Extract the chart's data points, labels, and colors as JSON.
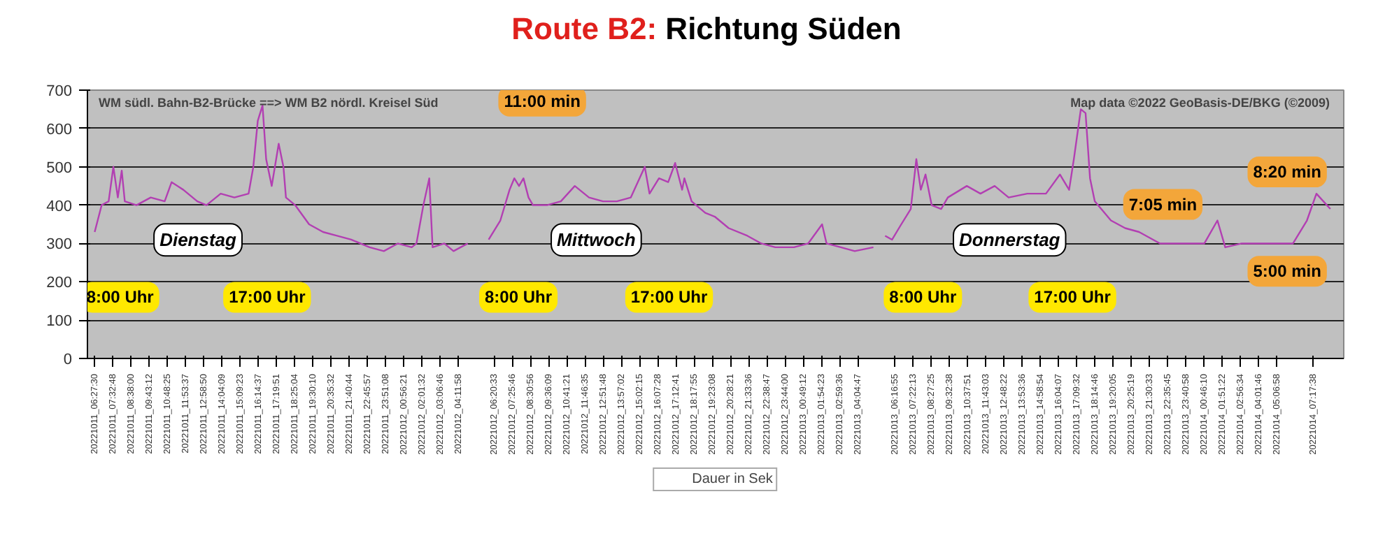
{
  "chart_data": {
    "type": "line",
    "title": "Route B2: Richtung Süden",
    "series": [
      {
        "name": "Dauer in Sek",
        "color": "#b23fb2",
        "x": [
          "2022-10-11T06:26",
          "2022-10-11T06:51",
          "2022-10-11T07:16",
          "2022-10-11T07:33",
          "2022-10-11T07:49",
          "2022-10-11T08:03",
          "2022-10-11T08:14",
          "2022-10-11T08:56",
          "2022-10-11T09:47",
          "2022-10-11T10:37",
          "2022-10-11T11:02",
          "2022-10-11T11:44",
          "2022-10-11T12:34",
          "2022-10-11T13:07",
          "2022-10-11T13:58",
          "2022-10-11T14:47",
          "2022-10-11T15:38",
          "2022-10-11T15:55",
          "2022-10-11T16:11",
          "2022-10-11T16:28",
          "2022-10-11T16:41",
          "2022-10-11T17:01",
          "2022-10-11T17:26",
          "2022-10-11T17:43",
          "2022-10-11T17:52",
          "2022-10-11T18:25",
          "2022-10-11T19:15",
          "2022-10-11T20:05",
          "2022-10-11T20:55",
          "2022-10-11T21:46",
          "2022-10-11T22:52",
          "2022-10-11T23:43",
          "2022-10-12T00:33",
          "2022-10-12T01:23",
          "2022-10-12T01:40",
          "2022-10-12T02:05",
          "2022-10-12T02:26",
          "2022-10-12T02:38",
          "2022-10-12T03:20",
          "2022-10-12T03:53",
          "2022-10-12T04:44",
          "2022-10-12T05:18",
          "2022-10-12T05:59",
          "2022-10-12T06:41",
          "2022-10-12T07:14",
          "2022-10-12T07:31",
          "2022-10-12T07:48",
          "2022-10-12T08:04",
          "2022-10-12T08:22",
          "2022-10-12T08:38",
          "2022-10-12T09:28",
          "2022-10-12T10:18",
          "2022-10-12T11:08",
          "2022-10-12T11:59",
          "2022-10-12T12:49",
          "2022-10-12T13:39",
          "2022-10-12T14:29",
          "2022-10-12T15:19",
          "2022-10-12T15:36",
          "2022-10-12T16:10",
          "2022-10-12T16:43",
          "2022-10-12T17:08",
          "2022-10-12T17:33",
          "2022-10-12T17:41",
          "2022-10-12T18:07",
          "2022-10-12T18:56",
          "2022-10-12T19:30",
          "2022-10-12T20:20",
          "2022-10-12T21:27",
          "2022-10-12T22:17",
          "2022-10-12T23:07",
          "2022-10-13T00:14",
          "2022-10-13T01:05",
          "2022-10-13T01:55",
          "2022-10-13T02:11",
          "2022-10-13T03:02",
          "2022-10-13T03:52",
          "2022-10-13T04:59",
          "2022-10-13T05:24",
          "2022-10-13T05:41",
          "2022-10-13T06:06",
          "2022-10-13T06:39",
          "2022-10-13T07:13",
          "2022-10-13T07:33",
          "2022-10-13T07:49",
          "2022-10-13T08:06",
          "2022-10-13T08:28",
          "2022-10-13T09:02",
          "2022-10-13T09:26",
          "2022-10-13T10:34",
          "2022-10-13T11:23",
          "2022-10-13T12:14",
          "2022-10-13T13:04",
          "2022-10-13T14:11",
          "2022-10-13T15:18",
          "2022-10-13T16:08",
          "2022-10-13T16:41",
          "2022-10-13T16:58",
          "2022-10-13T17:23",
          "2022-10-13T17:40",
          "2022-10-13T17:56",
          "2022-10-13T18:13",
          "2022-10-13T19:11",
          "2022-10-13T20:02",
          "2022-10-13T20:52",
          "2022-10-13T22:07",
          "2022-10-13T23:40",
          "2022-10-14T00:46",
          "2022-10-14T01:33",
          "2022-10-14T02:01",
          "2022-10-14T03:00",
          "2022-10-14T04:07",
          "2022-10-14T05:14",
          "2022-10-14T06:04",
          "2022-10-14T06:54",
          "2022-10-14T07:28",
          "2022-10-14T07:53",
          "2022-10-14T08:18"
        ],
        "values": [
          330,
          400,
          410,
          500,
          420,
          490,
          410,
          400,
          420,
          410,
          460,
          440,
          410,
          400,
          430,
          420,
          430,
          500,
          620,
          660,
          520,
          450,
          560,
          500,
          420,
          400,
          350,
          330,
          320,
          310,
          290,
          280,
          300,
          290,
          300,
          400,
          470,
          290,
          300,
          280,
          300,
          null,
          310,
          360,
          440,
          470,
          450,
          470,
          420,
          400,
          400,
          410,
          450,
          420,
          410,
          410,
          420,
          500,
          430,
          470,
          460,
          510,
          440,
          470,
          410,
          380,
          370,
          340,
          320,
          300,
          290,
          290,
          300,
          350,
          300,
          290,
          280,
          290,
          null,
          320,
          310,
          350,
          390,
          520,
          440,
          480,
          400,
          390,
          420,
          450,
          430,
          450,
          420,
          430,
          430,
          480,
          440,
          520,
          650,
          640,
          470,
          410,
          360,
          340,
          330,
          300,
          300,
          300,
          360,
          290,
          300,
          300,
          300,
          300,
          360,
          430,
          410,
          390
        ]
      }
    ],
    "xlim": [
      "2022-10-11T06:00",
      "2022-10-14T09:06"
    ],
    "ylim": [
      0,
      700
    ],
    "yticks": [
      0,
      100,
      200,
      300,
      400,
      500,
      600,
      700
    ],
    "xticks": [
      {
        "value": "2022-10-11T06:27:30",
        "label": "20221011_06:27:30"
      },
      {
        "value": "2022-10-11T07:32:48",
        "label": "20221011_07:32:48"
      },
      {
        "value": "2022-10-11T08:38:00",
        "label": "20221011_08:38:00"
      },
      {
        "value": "2022-10-11T09:43:12",
        "label": "20221011_09:43:12"
      },
      {
        "value": "2022-10-11T10:48:25",
        "label": "20221011_10:48:25"
      },
      {
        "value": "2022-10-11T11:53:37",
        "label": "20221011_11:53:37"
      },
      {
        "value": "2022-10-11T12:58:50",
        "label": "20221011_12:58:50"
      },
      {
        "value": "2022-10-11T14:04:09",
        "label": "20221011_14:04:09"
      },
      {
        "value": "2022-10-11T15:09:23",
        "label": "20221011_15:09:23"
      },
      {
        "value": "2022-10-11T16:14:37",
        "label": "20221011_16:14:37"
      },
      {
        "value": "2022-10-11T17:19:51",
        "label": "20221011_17:19:51"
      },
      {
        "value": "2022-10-11T18:25:04",
        "label": "20221011_18:25:04"
      },
      {
        "value": "2022-10-11T19:30:10",
        "label": "20221011_19:30:10"
      },
      {
        "value": "2022-10-11T20:35:32",
        "label": "20221011_20:35:32"
      },
      {
        "value": "2022-10-11T21:40:44",
        "label": "20221011_21:40:44"
      },
      {
        "value": "2022-10-11T22:45:57",
        "label": "20221011_22:45:57"
      },
      {
        "value": "2022-10-11T23:51:08",
        "label": "20221011_23:51:08"
      },
      {
        "value": "2022-10-12T00:56:21",
        "label": "20221012_00:56:21"
      },
      {
        "value": "2022-10-12T02:01:32",
        "label": "20221012_02:01:32"
      },
      {
        "value": "2022-10-12T03:06:46",
        "label": "20221012_03:06:46"
      },
      {
        "value": "2022-10-12T04:11:58",
        "label": "20221012_04:11:58"
      },
      {
        "value": "2022-10-12T06:20:33",
        "label": "20221012_06:20:33"
      },
      {
        "value": "2022-10-12T07:25:46",
        "label": "20221012_07:25:46"
      },
      {
        "value": "2022-10-12T08:30:56",
        "label": "20221012_08:30:56"
      },
      {
        "value": "2022-10-12T09:36:09",
        "label": "20221012_09:36:09"
      },
      {
        "value": "2022-10-12T10:41:21",
        "label": "20221012_10:41:21"
      },
      {
        "value": "2022-10-12T11:46:35",
        "label": "20221012_11:46:35"
      },
      {
        "value": "2022-10-12T12:51:48",
        "label": "20221012_12:51:48"
      },
      {
        "value": "2022-10-12T13:57:02",
        "label": "20221012_13:57:02"
      },
      {
        "value": "2022-10-12T15:02:15",
        "label": "20221012_15:02:15"
      },
      {
        "value": "2022-10-12T16:07:28",
        "label": "20221012_16:07:28"
      },
      {
        "value": "2022-10-12T17:12:41",
        "label": "20221012_17:12:41"
      },
      {
        "value": "2022-10-12T18:17:55",
        "label": "20221012_18:17:55"
      },
      {
        "value": "2022-10-12T19:23:08",
        "label": "20221012_19:23:08"
      },
      {
        "value": "2022-10-12T20:28:21",
        "label": "20221012_20:28:21"
      },
      {
        "value": "2022-10-12T21:33:36",
        "label": "20221012_21:33:36"
      },
      {
        "value": "2022-10-12T22:38:47",
        "label": "20221012_22:38:47"
      },
      {
        "value": "2022-10-12T23:44:00",
        "label": "20221012_23:44:00"
      },
      {
        "value": "2022-10-13T00:49:12",
        "label": "20221013_00:49:12"
      },
      {
        "value": "2022-10-13T01:54:23",
        "label": "20221013_01:54:23"
      },
      {
        "value": "2022-10-13T02:59:36",
        "label": "20221013_02:59:36"
      },
      {
        "value": "2022-10-13T04:04:47",
        "label": "20221013_04:04:47"
      },
      {
        "value": "2022-10-13T06:16:55",
        "label": "20221013_06:16:55"
      },
      {
        "value": "2022-10-13T07:22:13",
        "label": "20221013_07:22:13"
      },
      {
        "value": "2022-10-13T08:27:25",
        "label": "20221013_08:27:25"
      },
      {
        "value": "2022-10-13T09:32:38",
        "label": "20221013_09:32:38"
      },
      {
        "value": "2022-10-13T10:37:51",
        "label": "20221013_10:37:51"
      },
      {
        "value": "2022-10-13T11:43:03",
        "label": "20221013_11:43:03"
      },
      {
        "value": "2022-10-13T12:48:22",
        "label": "20221013_12:48:22"
      },
      {
        "value": "2022-10-13T13:53:36",
        "label": "20221013_13:53:36"
      },
      {
        "value": "2022-10-13T14:58:54",
        "label": "20221013_14:58:54"
      },
      {
        "value": "2022-10-13T16:04:07",
        "label": "20221013_16:04:07"
      },
      {
        "value": "2022-10-13T17:09:32",
        "label": "20221013_17:09:32"
      },
      {
        "value": "2022-10-13T18:14:46",
        "label": "20221013_18:14:46"
      },
      {
        "value": "2022-10-13T19:20:05",
        "label": "20221013_19:20:05"
      },
      {
        "value": "2022-10-13T20:25:19",
        "label": "20221013_20:25:19"
      },
      {
        "value": "2022-10-13T21:30:33",
        "label": "20221013_21:30:33"
      },
      {
        "value": "2022-10-13T22:35:45",
        "label": "20221013_22:35:45"
      },
      {
        "value": "2022-10-13T23:40:58",
        "label": "20221013_23:40:58"
      },
      {
        "value": "2022-10-14T00:46:10",
        "label": "20221014_00:46:10"
      },
      {
        "value": "2022-10-14T01:51:22",
        "label": "20221014_01:51:22"
      },
      {
        "value": "2022-10-14T02:56:34",
        "label": "20221014_02:56:34"
      },
      {
        "value": "2022-10-14T04:01:46",
        "label": "20221014_04:01:46"
      },
      {
        "value": "2022-10-14T05:06:58",
        "label": "20221014_05:06:58"
      },
      {
        "value": "2022-10-14T07:17:38",
        "label": "20221014_07:17:38"
      }
    ],
    "annotations": [
      "WM südl. Bahn-B2-Brücke ==> WM B2 nördl. Kreisel Süd",
      "Map data ©2022 GeoBasis-DE/BKG (©2009)",
      "11:00 min",
      "8:20 min",
      "7:05 min",
      "5:00 min",
      "Dienstag",
      "Mittwoch",
      "Donnerstag",
      "8:00 Uhr",
      "17:00 Uhr",
      "8:00 Uhr",
      "17:00 Uhr",
      "8:00 Uhr",
      "17:00 Uhr"
    ],
    "grid": "y",
    "legend": "bottom",
    "marker": "none",
    "line_style": "solid"
  }
}
